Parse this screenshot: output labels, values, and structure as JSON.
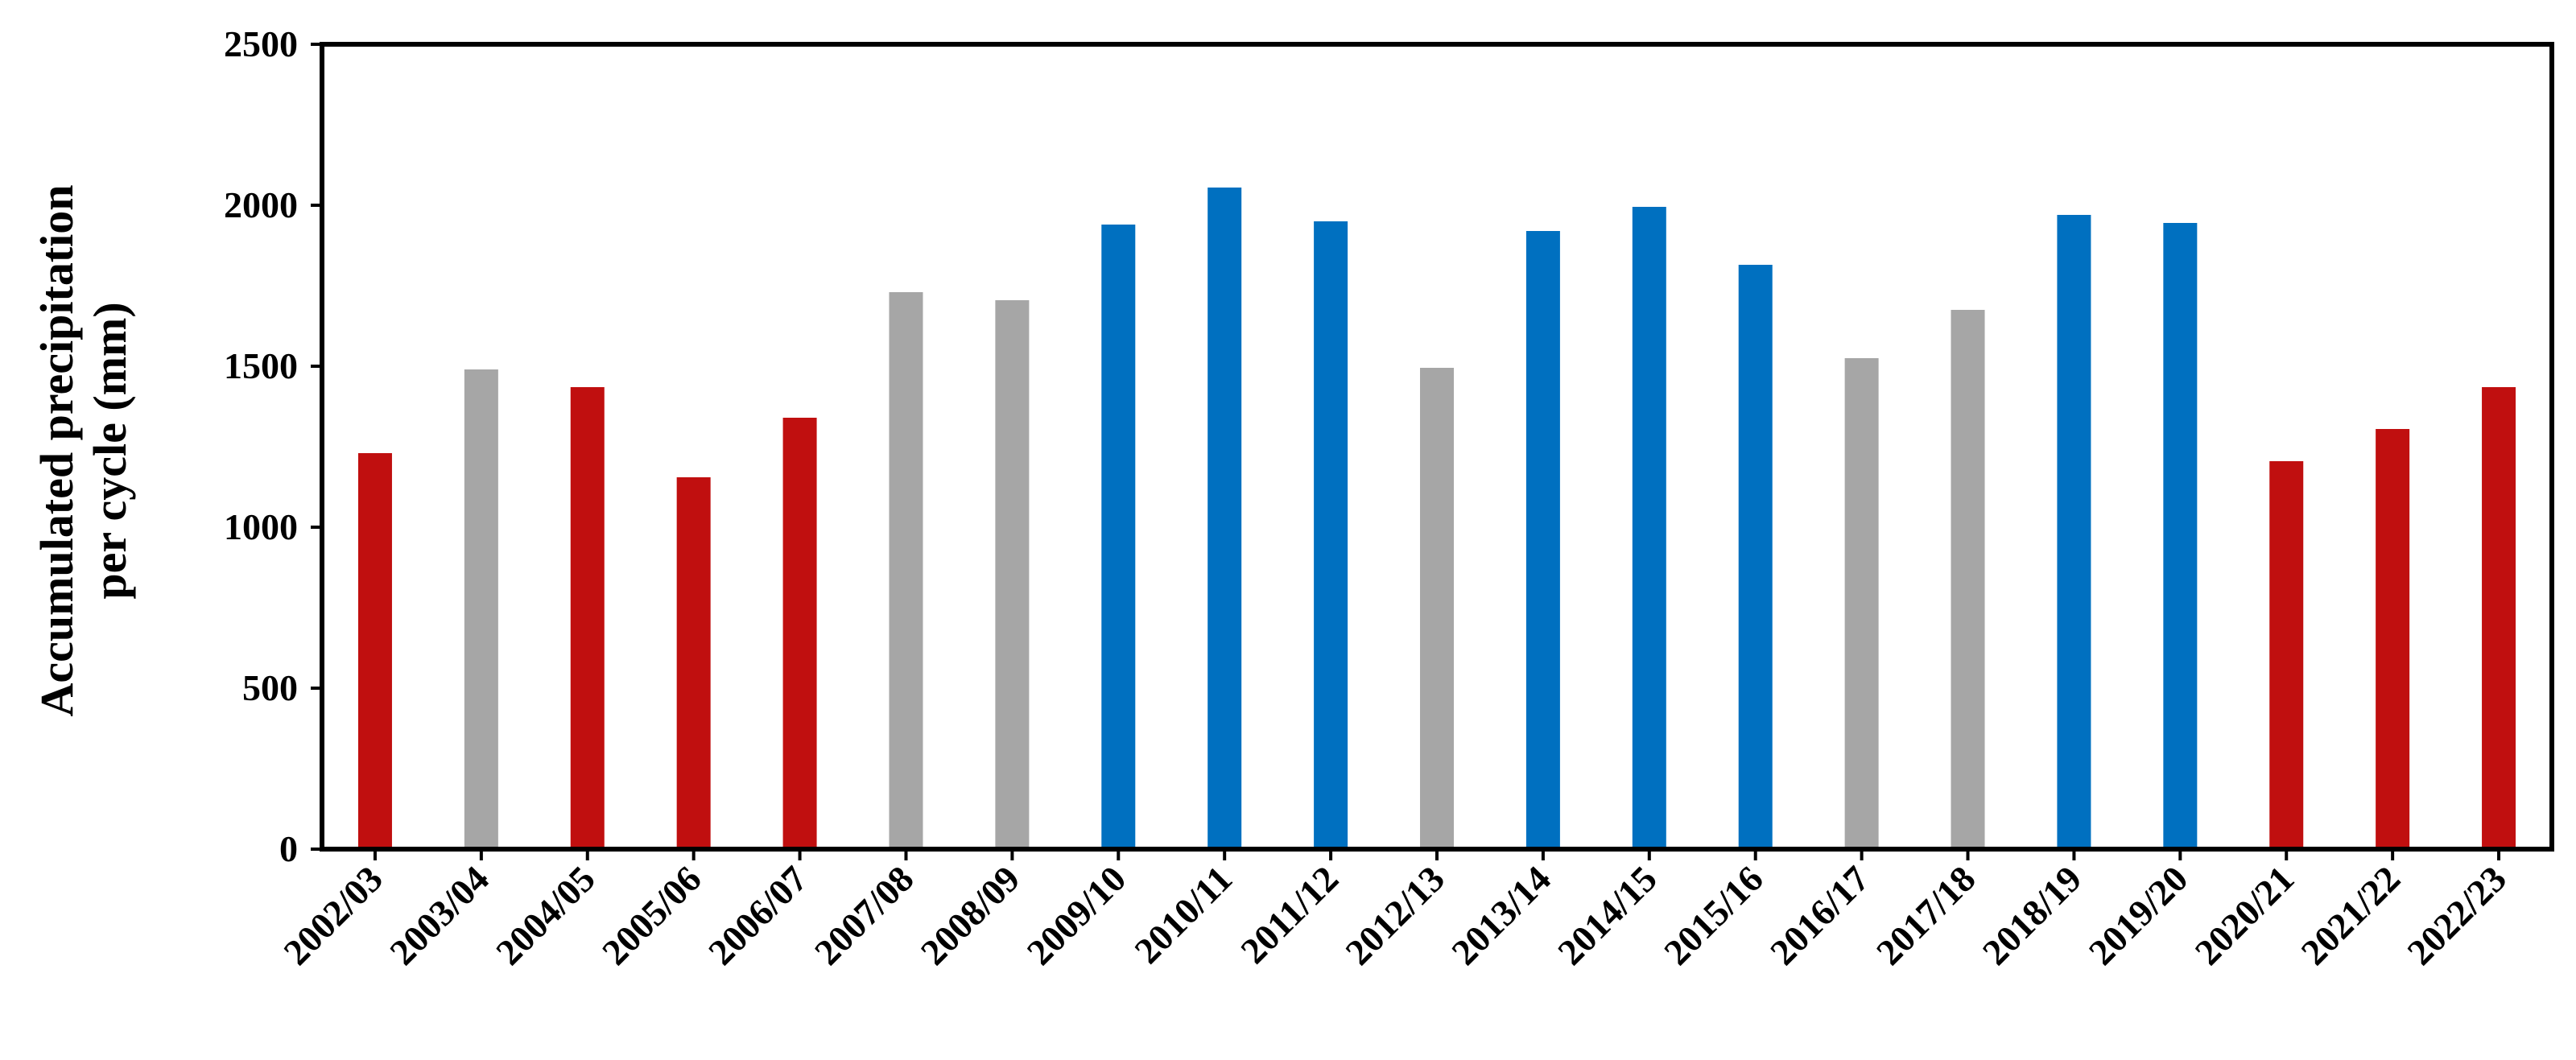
{
  "chart_data": {
    "type": "bar",
    "ylabel": [
      "Accumulated precipitation",
      "per cycle (mm)"
    ],
    "categories": [
      "2002/03",
      "2003/04",
      "2004/05",
      "2005/06",
      "2006/07",
      "2007/08",
      "2008/09",
      "2009/10",
      "2010/11",
      "2011/12",
      "2012/13",
      "2013/14",
      "2014/15",
      "2015/16",
      "2016/17",
      "2017/18",
      "2018/19",
      "2019/20",
      "2020/21",
      "2021/22",
      "2022/23"
    ],
    "values": [
      1230,
      1490,
      1435,
      1155,
      1340,
      1730,
      1705,
      1940,
      2055,
      1950,
      1495,
      1920,
      1995,
      1815,
      1525,
      1675,
      1970,
      1945,
      1205,
      1305,
      1435
    ],
    "colors": [
      "#c00f0f",
      "#a6a6a6",
      "#c00f0f",
      "#c00f0f",
      "#c00f0f",
      "#a6a6a6",
      "#a6a6a6",
      "#0070c0",
      "#0070c0",
      "#0070c0",
      "#a6a6a6",
      "#0070c0",
      "#0070c0",
      "#0070c0",
      "#a6a6a6",
      "#a6a6a6",
      "#0070c0",
      "#0070c0",
      "#c00f0f",
      "#c00f0f",
      "#c00f0f"
    ],
    "ylim": [
      0,
      2500
    ],
    "yticks": [
      0,
      500,
      1000,
      1500,
      2000,
      2500
    ],
    "grid": false
  }
}
